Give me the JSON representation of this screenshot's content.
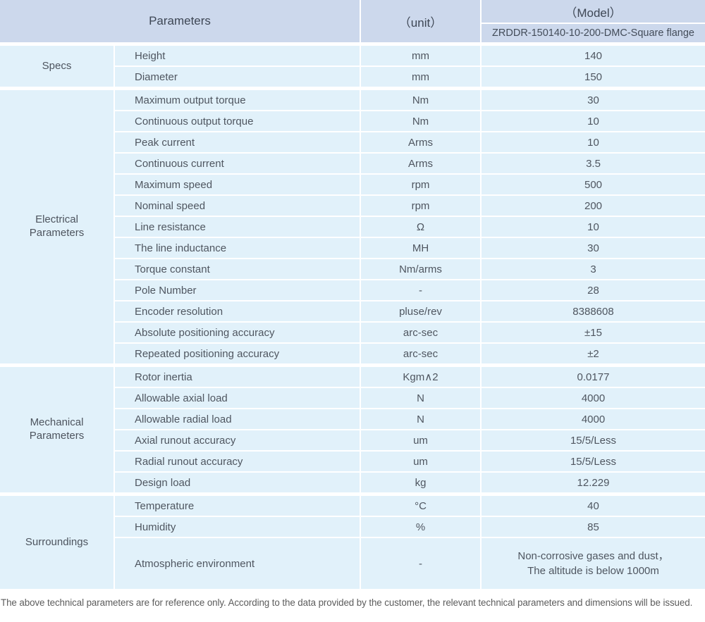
{
  "header": {
    "parameters": "Parameters",
    "unit": "（unit）",
    "model_label": "（Model）",
    "model_value": "ZRDDR-150140-10-200-DMC-Square flange"
  },
  "sections": [
    {
      "label": "Specs",
      "rows": [
        {
          "name": "Height",
          "unit": "mm",
          "value": "140"
        },
        {
          "name": "Diameter",
          "unit": "mm",
          "value": "150"
        }
      ]
    },
    {
      "label": "Electrical\nParameters",
      "rows": [
        {
          "name": "Maximum output torque",
          "unit": "Nm",
          "value": "30"
        },
        {
          "name": "Continuous output torque",
          "unit": "Nm",
          "value": "10"
        },
        {
          "name": "Peak current",
          "unit": "Arms",
          "value": "10"
        },
        {
          "name": "Continuous current",
          "unit": "Arms",
          "value": "3.5"
        },
        {
          "name": "Maximum speed",
          "unit": "rpm",
          "value": "500"
        },
        {
          "name": "Nominal speed",
          "unit": "rpm",
          "value": "200"
        },
        {
          "name": "Line resistance",
          "unit": "Ω",
          "value": "10"
        },
        {
          "name": "The line inductance",
          "unit": "MH",
          "value": "30"
        },
        {
          "name": "Torque constant",
          "unit": "Nm/arms",
          "value": "3"
        },
        {
          "name": "Pole Number",
          "unit": "-",
          "value": "28"
        },
        {
          "name": "Encoder resolution",
          "unit": "pluse/rev",
          "value": "8388608"
        },
        {
          "name": "Absolute positioning accuracy",
          "unit": "arc-sec",
          "value": "±15"
        },
        {
          "name": "Repeated positioning accuracy",
          "unit": "arc-sec",
          "value": "±2"
        }
      ]
    },
    {
      "label": "Mechanical\nParameters",
      "rows": [
        {
          "name": "Rotor inertia",
          "unit": "Kgm∧2",
          "value": "0.0177"
        },
        {
          "name": "Allowable axial load",
          "unit": "N",
          "value": "4000"
        },
        {
          "name": "Allowable radial load",
          "unit": "N",
          "value": "4000"
        },
        {
          "name": "Axial runout accuracy",
          "unit": "um",
          "value": "15/5/Less"
        },
        {
          "name": "Radial runout accuracy",
          "unit": "um",
          "value": "15/5/Less"
        },
        {
          "name": "Design load",
          "unit": "kg",
          "value": "12.229"
        }
      ]
    },
    {
      "label": "Surroundings",
      "rows": [
        {
          "name": "Temperature",
          "unit": "°C",
          "value": "40"
        },
        {
          "name": "Humidity",
          "unit": "%",
          "value": "85"
        },
        {
          "name": "Atmospheric environment",
          "unit": "-",
          "value": "Non-corrosive gases and dust，\nThe altitude is below 1000m"
        }
      ]
    }
  ],
  "footer": {
    "note": "The above technical parameters are for reference only. According to the data provided by the customer, the relevant technical parameters and dimensions will be issued."
  },
  "colors": {
    "header_bg": "#ccd8ec",
    "row_bg": "#e1f1fa",
    "text": "#4f5660"
  }
}
